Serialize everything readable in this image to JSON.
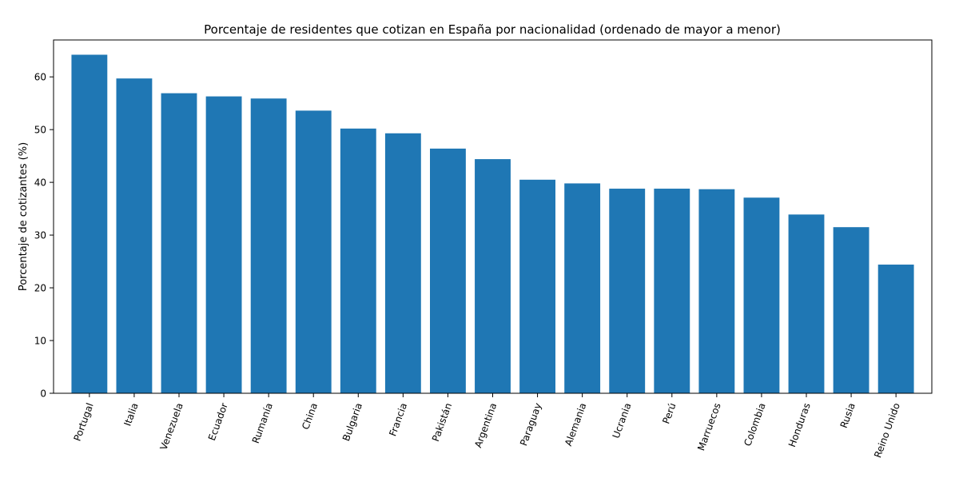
{
  "chart_data": {
    "type": "bar",
    "title": "Porcentaje de residentes que cotizan en España por nacionalidad (ordenado de mayor a menor)",
    "xlabel": "",
    "ylabel": "Porcentaje de cotizantes (%)",
    "ylim": [
      0,
      67
    ],
    "yticks": [
      0,
      10,
      20,
      30,
      40,
      50,
      60
    ],
    "grid": false,
    "legend": "none",
    "bar_color": "#1f77b4",
    "categories": [
      "Portugal",
      "Italia",
      "Venezuela",
      "Ecuador",
      "Rumanía",
      "China",
      "Bulgaria",
      "Francia",
      "Pakistán",
      "Argentina",
      "Paraguay",
      "Alemania",
      "Ucrania",
      "Perú",
      "Marruecos",
      "Colombia",
      "Honduras",
      "Rusia",
      "Reino Unido"
    ],
    "values": [
      64.2,
      59.7,
      56.9,
      56.3,
      55.9,
      53.6,
      50.2,
      49.3,
      46.4,
      44.4,
      40.5,
      39.8,
      38.8,
      38.8,
      38.7,
      37.1,
      33.9,
      31.5,
      24.4
    ]
  }
}
